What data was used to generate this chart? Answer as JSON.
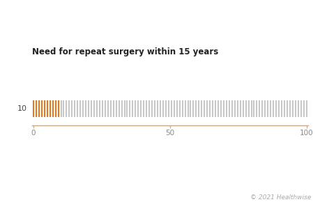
{
  "title": "Need for repeat surgery within 15 years",
  "total_figures": 100,
  "highlighted": 10,
  "highlight_color": "#E87722",
  "base_color": "#C8C8C8",
  "background_color": "#FFFFFF",
  "axis_line_color": "#C8A882",
  "label_value": "10",
  "copyright_text": "© 2021 Healthwise",
  "title_fontsize": 8.5,
  "label_fontsize": 8,
  "tick_fontsize": 7.5,
  "copyright_fontsize": 6.5,
  "tick_color": "#888888"
}
